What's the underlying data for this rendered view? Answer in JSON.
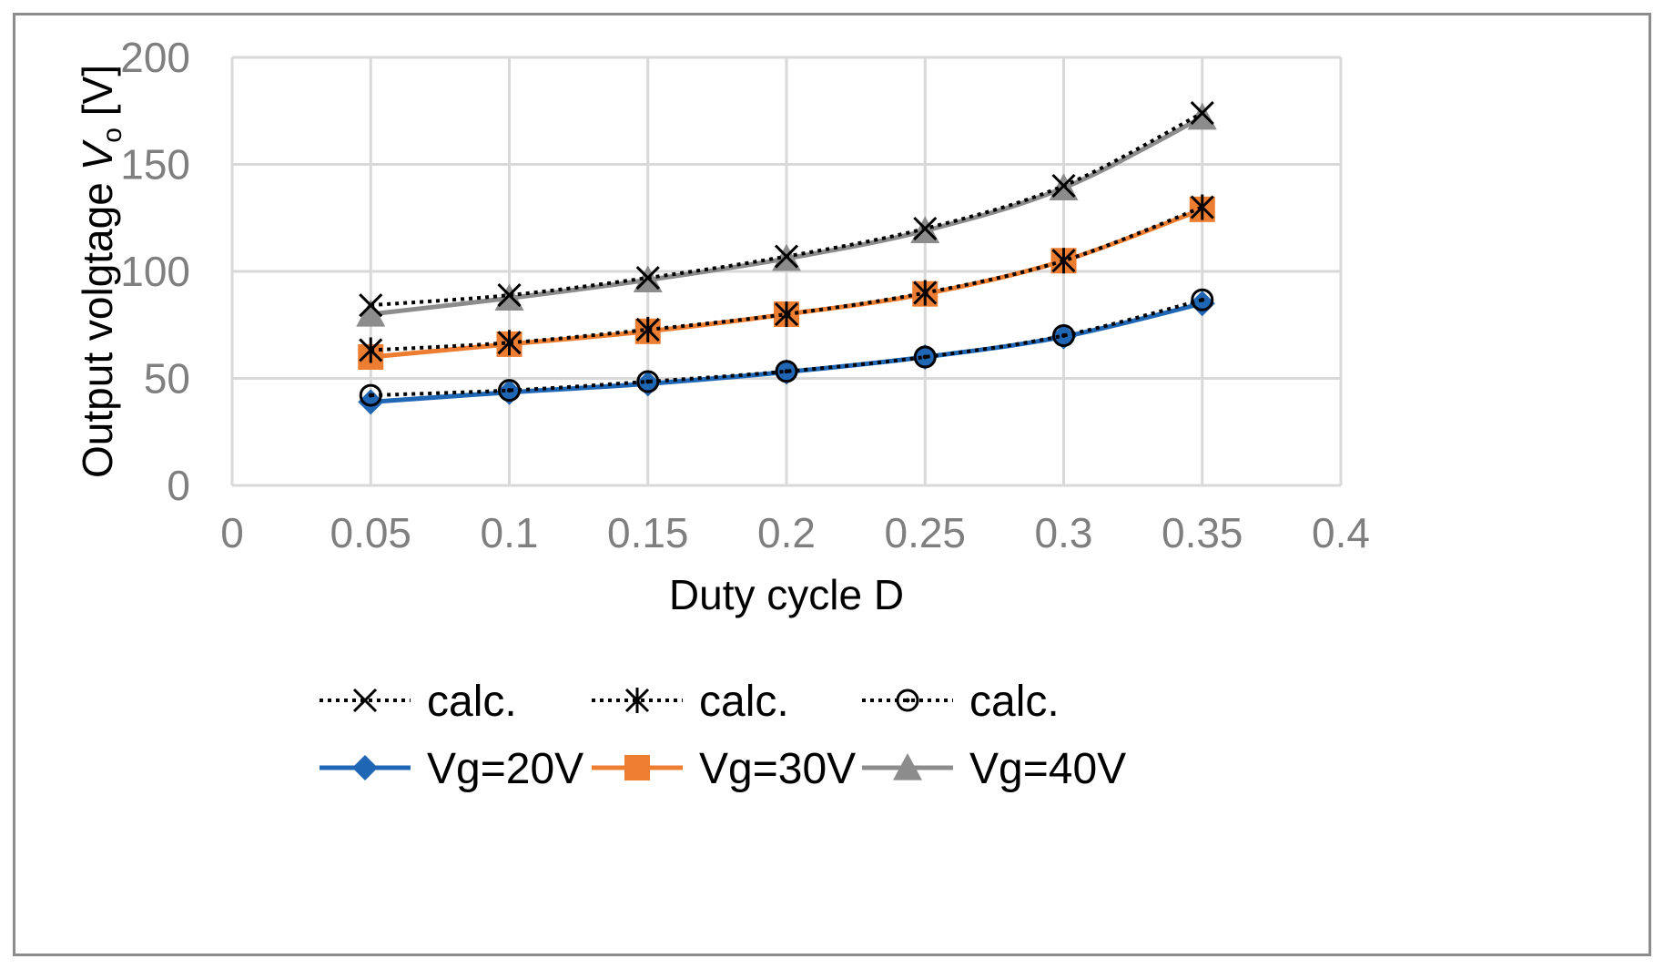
{
  "chart_data": {
    "type": "line",
    "title": "",
    "xlabel": "Duty cycle D",
    "ylabel": "Output volgtage V",
    "ylabel_sub": "o",
    "ylabel_unit": "[V]",
    "xlim": [
      0,
      0.4
    ],
    "ylim": [
      0,
      200
    ],
    "xticks": [
      0,
      0.05,
      0.1,
      0.15,
      0.2,
      0.25,
      0.3,
      0.35,
      0.4
    ],
    "xtick_labels": [
      "0",
      "0.05",
      "0.1",
      "0.15",
      "0.2",
      "0.25",
      "0.3",
      "0.35",
      "0.4"
    ],
    "yticks": [
      0,
      50,
      100,
      150,
      200
    ],
    "ytick_labels": [
      "0",
      "50",
      "100",
      "150",
      "200"
    ],
    "grid": true,
    "legend_position": "bottom",
    "series": [
      {
        "name": "calc.",
        "key": "calc40",
        "style": "dotted",
        "marker": "x",
        "color": "#000000",
        "x": [
          0.05,
          0.1,
          0.15,
          0.2,
          0.25,
          0.3,
          0.35
        ],
        "values": [
          84.2,
          88.9,
          97,
          107,
          120,
          140,
          174
        ]
      },
      {
        "name": "calc.",
        "key": "calc30",
        "style": "dotted",
        "marker": "star",
        "color": "#000000",
        "x": [
          0.05,
          0.1,
          0.15,
          0.2,
          0.25,
          0.3,
          0.35
        ],
        "values": [
          63.2,
          66.7,
          72.8,
          80,
          90,
          105,
          130
        ]
      },
      {
        "name": "calc.",
        "key": "calc20",
        "style": "dotted",
        "marker": "circle",
        "color": "#000000",
        "x": [
          0.05,
          0.1,
          0.15,
          0.2,
          0.25,
          0.3,
          0.35
        ],
        "values": [
          42.1,
          44.4,
          48.5,
          53.3,
          60,
          70,
          86.7
        ]
      },
      {
        "name": "Vg=20V",
        "key": "vg20",
        "style": "solid",
        "marker": "diamond",
        "color": "#1f66b5",
        "x": [
          0.05,
          0.1,
          0.15,
          0.2,
          0.25,
          0.3,
          0.35
        ],
        "values": [
          39,
          43.5,
          47.5,
          53,
          60,
          69.5,
          85
        ]
      },
      {
        "name": "Vg=30V",
        "key": "vg30",
        "style": "solid",
        "marker": "square",
        "color": "#ed7d31",
        "x": [
          0.05,
          0.1,
          0.15,
          0.2,
          0.25,
          0.3,
          0.35
        ],
        "values": [
          60,
          66,
          72,
          80,
          89.5,
          105,
          129
        ]
      },
      {
        "name": "Vg=40V",
        "key": "vg40",
        "style": "solid",
        "marker": "triangle",
        "color": "#8c8c8c",
        "x": [
          0.05,
          0.1,
          0.15,
          0.2,
          0.25,
          0.3,
          0.35
        ],
        "values": [
          80,
          87.5,
          96,
          106,
          119,
          139,
          172
        ]
      }
    ]
  }
}
